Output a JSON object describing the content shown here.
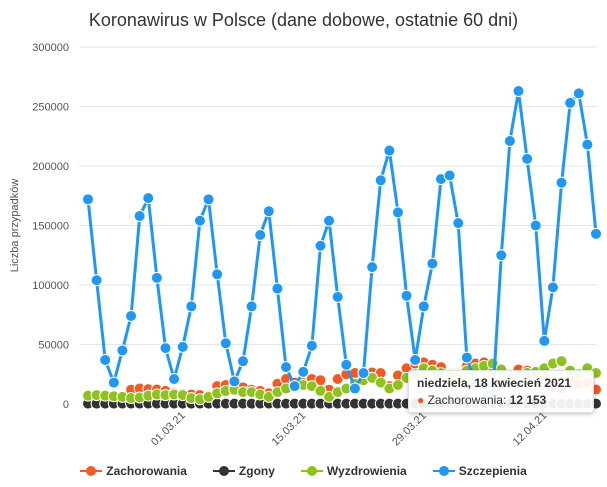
{
  "chart_data": {
    "type": "line",
    "title": "Koronawirus w Polsce (dane dobowe, ostatnie 60 dni)",
    "ylabel": "Liczba przypadków",
    "xlabel": "",
    "ylim": [
      0,
      300000
    ],
    "y_ticks": [
      "0",
      "50000",
      "100000",
      "150000",
      "200000",
      "250000",
      "300000"
    ],
    "y_tick_values": [
      0,
      50000,
      100000,
      150000,
      200000,
      250000,
      300000
    ],
    "x_start_date": "2021-02-18",
    "x_tick_labels": [
      {
        "label": "01.03.21",
        "date": "2021-03-01"
      },
      {
        "label": "15.03.21",
        "date": "2021-03-15"
      },
      {
        "label": "29.03.21",
        "date": "2021-03-29"
      },
      {
        "label": "12.04.21",
        "date": "2021-04-12"
      }
    ],
    "grid": true,
    "legend_position": "bottom",
    "series": [
      {
        "name": "Zachorowania",
        "color": "#f15a22",
        "values": [
          null,
          null,
          null,
          null,
          null,
          12000,
          13000,
          12500,
          12200,
          11000,
          9000,
          8500,
          8000,
          7500,
          7000,
          15000,
          16000,
          15500,
          14000,
          12000,
          11000,
          9000,
          17000,
          21000,
          18000,
          17500,
          21000,
          20000,
          12000,
          21000,
          25000,
          26000,
          27000,
          26500,
          26000,
          15000,
          24000,
          30000,
          34000,
          35000,
          33000,
          31000,
          22000,
          null,
          32000,
          34000,
          35000,
          29000,
          17000,
          20000,
          29000,
          28000,
          27000,
          24000,
          14000,
          13000,
          21000,
          17000,
          18000,
          12153
        ]
      },
      {
        "name": "Zgony",
        "color": "#333333",
        "values": [
          300,
          300,
          300,
          300,
          300,
          300,
          300,
          300,
          300,
          300,
          300,
          300,
          300,
          300,
          300,
          300,
          300,
          300,
          300,
          300,
          300,
          300,
          300,
          300,
          300,
          300,
          300,
          300,
          300,
          300,
          300,
          300,
          300,
          300,
          300,
          300,
          300,
          300,
          300,
          300,
          300,
          300,
          300,
          300,
          300,
          300,
          300,
          300,
          300,
          300,
          300,
          300,
          300,
          300,
          300,
          300,
          300,
          300,
          300,
          300
        ]
      },
      {
        "name": "Wyzdrowienia",
        "color": "#8dc21f",
        "values": [
          7000,
          7500,
          7000,
          6500,
          6000,
          5000,
          5500,
          7000,
          8000,
          7500,
          8000,
          7500,
          5000,
          4000,
          6000,
          9000,
          11000,
          12000,
          10000,
          10000,
          8000,
          6000,
          10000,
          13000,
          15000,
          16000,
          15000,
          11000,
          6000,
          10000,
          13000,
          17000,
          20000,
          22000,
          18000,
          13000,
          16000,
          22000,
          25000,
          30000,
          28000,
          26000,
          24000,
          22000,
          28000,
          30000,
          32000,
          34000,
          29000,
          24000,
          null,
          26000,
          27000,
          30000,
          34000,
          36000,
          28000,
          25000,
          30000,
          26000
        ]
      },
      {
        "name": "Szczepienia",
        "color": "#2196f3",
        "values": [
          172000,
          104000,
          37000,
          18000,
          45000,
          74000,
          158000,
          173000,
          106000,
          47000,
          21000,
          48000,
          82000,
          154000,
          172000,
          109000,
          51000,
          19000,
          36000,
          82000,
          142000,
          162000,
          97000,
          31000,
          15000,
          27000,
          49000,
          133000,
          154000,
          90000,
          33000,
          13000,
          26000,
          115000,
          188000,
          213000,
          161000,
          91000,
          37000,
          82000,
          118000,
          189000,
          192000,
          152000,
          39000,
          17000,
          16000,
          5000,
          125000,
          221000,
          263000,
          206000,
          150000,
          53000,
          98000,
          186000,
          253000,
          261000,
          218000,
          143000
        ]
      }
    ],
    "tooltip": {
      "date": "niedziela, 18 kwiecień 2021",
      "series": "Zachorowania",
      "label": "Zachorowania: ",
      "value": "12 153"
    }
  }
}
